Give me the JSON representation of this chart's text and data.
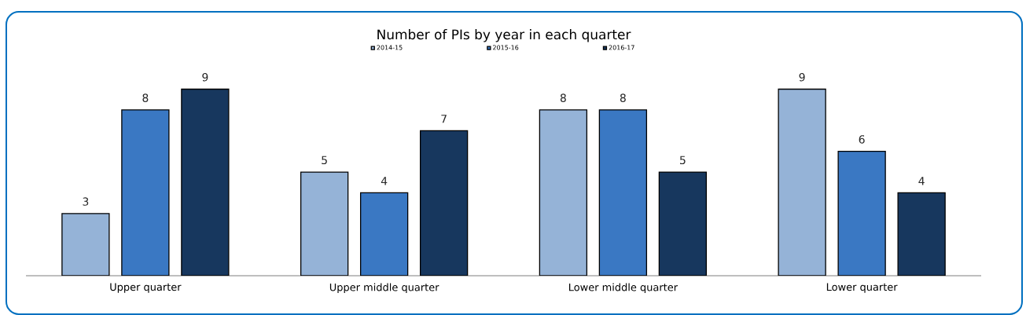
{
  "chart_data": {
    "type": "bar",
    "title": "Number of PIs by year in each quarter",
    "categories": [
      "Upper quarter",
      "Upper middle quarter",
      "Lower middle quarter",
      "Lower quarter"
    ],
    "series": [
      {
        "name": "2014-15",
        "color": "#95b3d7",
        "values": [
          3,
          5,
          8,
          9
        ]
      },
      {
        "name": "2015-16",
        "color": "#3a78c3",
        "values": [
          8,
          4,
          8,
          6
        ]
      },
      {
        "name": "2016-17",
        "color": "#17375e",
        "values": [
          9,
          7,
          5,
          4
        ]
      }
    ],
    "data_labels": true,
    "legend": "top"
  }
}
